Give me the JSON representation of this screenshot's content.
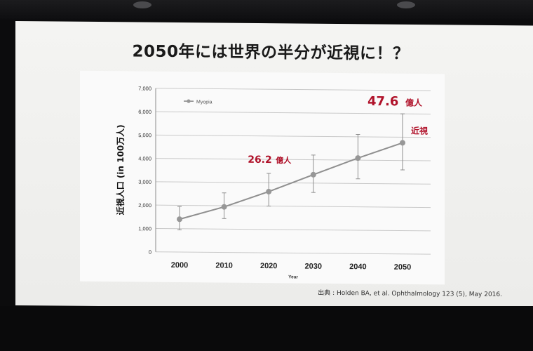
{
  "slide": {
    "title": "2050年には世界の半分が近視に！？",
    "source": "出典 : Holden BA, et al. Ophthalmology 123 (5), May 2016."
  },
  "chart_data": {
    "type": "line",
    "title": "",
    "xlabel": "Year",
    "ylabel": "近視人口 (in 100万人)",
    "ylim": [
      0,
      7000
    ],
    "y_ticks": [
      "0",
      "1,000",
      "2,000",
      "3,000",
      "4,000",
      "5,000",
      "6,000",
      "7,000"
    ],
    "categories": [
      "2000",
      "2010",
      "2020",
      "2030",
      "2040",
      "2050"
    ],
    "series": [
      {
        "name": "Myopia",
        "values": [
          1406,
          1950,
          2620,
          3361,
          4089,
          4758
        ],
        "error_low": [
          950,
          1450,
          2000,
          2600,
          3200,
          3600
        ],
        "error_high": [
          1950,
          2550,
          3400,
          4200,
          5100,
          6000
        ]
      }
    ],
    "grid": true,
    "legend": "top-left",
    "annotations": [
      {
        "category": "2020",
        "text": "26.2",
        "unit": "億人"
      },
      {
        "category": "2050",
        "text": "47.6",
        "unit": "億人",
        "sub": "近視"
      }
    ],
    "colors": {
      "series": "#8f8f8f",
      "annotation": "#b0122a",
      "grid": "#c9c9c9"
    }
  }
}
